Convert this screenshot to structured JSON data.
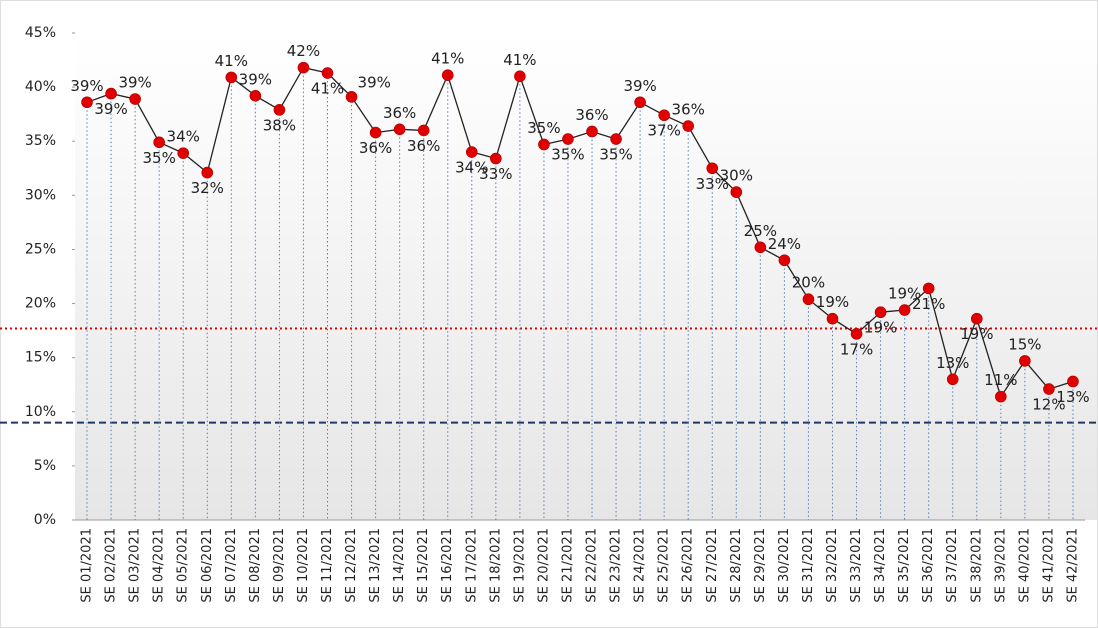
{
  "chart_data": {
    "type": "line",
    "categories": [
      "SE 01/2021",
      "SE 02/2021",
      "SE 03/2021",
      "SE 04/2021",
      "SE 05/2021",
      "SE 06/2021",
      "SE 07/2021",
      "SE 08/2021",
      "SE 09/2021",
      "SE 10/2021",
      "SE 11/2021",
      "SE 12/2021",
      "SE 13/2021",
      "SE 14/2021",
      "SE 15/2021",
      "SE 16/2021",
      "SE 17/2021",
      "SE 18/2021",
      "SE 19/2021",
      "SE 20/2021",
      "SE 21/2021",
      "SE 22/2021",
      "SE 23/2021",
      "SE 24/2021",
      "SE 25/2021",
      "SE 26/2021",
      "SE 27/2021",
      "SE 28/2021",
      "SE 29/2021",
      "SE 30/2021",
      "SE 31/2021",
      "SE 32/2021",
      "SE 33/2021",
      "SE 34/2021",
      "SE 35/2021",
      "SE 36/2021",
      "SE 37/2021",
      "SE 38/2021",
      "SE 39/2021",
      "SE 40/2021",
      "SE 41/2021",
      "SE 42/2021"
    ],
    "series": [
      {
        "color": "#e00000",
        "line_color": "#222222",
        "values": [
          38.6,
          39.4,
          38.9,
          34.9,
          33.9,
          32.1,
          40.9,
          39.2,
          37.9,
          41.8,
          41.3,
          39.1,
          35.8,
          36.1,
          36.0,
          41.1,
          34.0,
          33.4,
          41.0,
          34.7,
          35.2,
          35.9,
          35.2,
          38.6,
          37.4,
          36.4,
          32.5,
          30.3,
          25.2,
          24.0,
          20.4,
          18.6,
          17.2,
          19.2,
          19.4,
          21.4,
          13.0,
          18.6,
          11.4,
          14.7,
          12.1,
          12.8
        ],
        "value_labels": [
          "39%",
          "39%",
          "39%",
          "35%",
          "34%",
          "32%",
          "41%",
          "39%",
          "38%",
          "42%",
          "41%",
          "39%",
          "36%",
          "36%",
          "36%",
          "41%",
          "34%",
          "33%",
          "41%",
          "35%",
          "35%",
          "36%",
          "35%",
          "39%",
          "37%",
          "36%",
          "33%",
          "30%",
          "25%",
          "24%",
          "20%",
          "19%",
          "17%",
          "19%",
          "19%",
          "21%",
          "13%",
          "19%",
          "11%",
          "15%",
          "12%",
          "13%"
        ]
      }
    ],
    "ylim": [
      0,
      45
    ],
    "yticks": [
      {
        "value": 0,
        "label": "0%"
      },
      {
        "value": 5,
        "label": "5%"
      },
      {
        "value": 10,
        "label": "10%"
      },
      {
        "value": 15,
        "label": "15%"
      },
      {
        "value": 20,
        "label": "20%"
      },
      {
        "value": 25,
        "label": "25%"
      },
      {
        "value": 30,
        "label": "30%"
      },
      {
        "value": 35,
        "label": "35%"
      },
      {
        "value": 40,
        "label": "40%"
      },
      {
        "value": 45,
        "label": "45%"
      }
    ],
    "reference_lines": [
      {
        "value": 17.7,
        "color": "#e00000",
        "style": "dotted"
      },
      {
        "value": 9.0,
        "color": "#1f3864",
        "style": "dashed"
      }
    ]
  }
}
